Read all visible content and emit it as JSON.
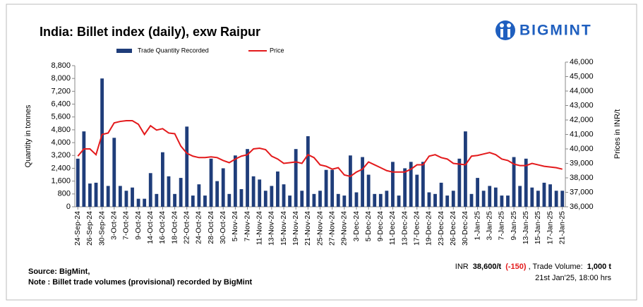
{
  "chart_data": {
    "type": "bar_line",
    "title": "India: Billet index (daily), exw Raipur",
    "brand": "BIGMINT",
    "y_label": "Quantity in tonnes",
    "y2_label": "Prices in INR/t",
    "categories": [
      "24-Sep-24",
      null,
      "26-Sep-24",
      null,
      "30-Sep-24",
      null,
      "3-Oct-24",
      null,
      "7-Oct-24",
      null,
      "9-Oct-24",
      null,
      "14-Oct-24",
      null,
      "16-Oct-24",
      null,
      "18-Oct-24",
      null,
      "22-Oct-24",
      null,
      "24-Oct-24",
      null,
      "28-Oct-24",
      null,
      "30-Oct-24",
      null,
      "5-Nov-24",
      null,
      "7-Nov-24",
      null,
      "11-Nov-24",
      null,
      "13-Nov-24",
      null,
      "15-Nov-24",
      null,
      "19-Nov-24",
      null,
      "21-Nov-24",
      null,
      "25-Nov-24",
      null,
      "27-Nov-24",
      null,
      "29-Nov-24",
      null,
      "3-Dec-24",
      null,
      "5-Dec-24",
      null,
      "9-Dec-24",
      null,
      "11-Dec-24",
      null,
      "13-Dec-24",
      null,
      "17-Dec-24",
      null,
      "19-Dec-24",
      null,
      "23-Dec-24",
      null,
      "26-Dec-24",
      null,
      "30-Dec-24",
      null,
      "1-Jan-25",
      null,
      "3-Jan-25",
      null,
      "7-Jan-25",
      null,
      "9-Jan-25",
      null,
      "13-Jan-25",
      null,
      "15-Jan-25",
      null,
      "17-Jan-25",
      null,
      "21-Jan-25"
    ],
    "series": [
      {
        "name": "Trade Quantity Recorded",
        "color": "#1f3d7a",
        "kind": "bar",
        "values": [
          3000,
          4700,
          1450,
          1500,
          8000,
          1300,
          4300,
          1300,
          1000,
          1200,
          500,
          500,
          2100,
          800,
          3400,
          1900,
          800,
          1800,
          5000,
          700,
          1400,
          700,
          3000,
          1600,
          2400,
          800,
          3200,
          1100,
          3600,
          1900,
          1700,
          1000,
          1300,
          2200,
          1400,
          700,
          3600,
          1000,
          4400,
          800,
          1000,
          2300,
          2300,
          800,
          700,
          3200,
          900,
          3100,
          2000,
          800,
          800,
          1000,
          2800,
          700,
          2400,
          2800,
          2000,
          2800,
          900,
          800,
          1500,
          700,
          1000,
          3000,
          4700,
          800,
          1800,
          1000,
          1300,
          1200,
          700,
          700,
          3100,
          1300,
          3000,
          1200,
          1000,
          1500,
          1400,
          1000,
          1000
        ]
      },
      {
        "name": "Price",
        "color": "#e31a1c",
        "kind": "line",
        "axis": "y2",
        "values": [
          39500,
          40000,
          40000,
          39600,
          41000,
          41100,
          41800,
          41900,
          41950,
          41950,
          41700,
          41000,
          41600,
          41300,
          41400,
          41100,
          41050,
          40200,
          39700,
          39500,
          39400,
          39400,
          39450,
          39400,
          39200,
          39050,
          39300,
          39500,
          39600,
          40000,
          40050,
          39950,
          39500,
          39300,
          39000,
          39050,
          39100,
          39000,
          39600,
          39400,
          38900,
          38800,
          38600,
          38700,
          38200,
          38100,
          38400,
          38600,
          39100,
          38900,
          38700,
          38500,
          38400,
          38400,
          38400,
          38600,
          38900,
          38900,
          39500,
          39600,
          39400,
          39300,
          39000,
          38950,
          38900,
          39500,
          39550,
          39650,
          39750,
          39600,
          39300,
          39200,
          38950,
          38850,
          38850,
          39000,
          38900,
          38800,
          38750,
          38700,
          38600
        ]
      }
    ],
    "ylim": [
      0,
      8800
    ],
    "yticks": [
      0,
      800,
      {
        "value": 1600,
        "label": "1,600"
      },
      {
        "value": 2400,
        "label": "2,400"
      },
      {
        "value": 3200,
        "label": "3,200"
      },
      {
        "value": 4000,
        "label": "4,000"
      },
      {
        "value": 4800,
        "label": "4,800"
      },
      {
        "value": 5600,
        "label": "5,600"
      },
      {
        "value": 6400,
        "label": "6,400"
      },
      {
        "value": 7200,
        "label": "7,200"
      },
      {
        "value": 8000,
        "label": "8,000"
      },
      {
        "value": 8800,
        "label": "8,800"
      }
    ],
    "y2lim": [
      36000,
      46000
    ],
    "y2ticks": [
      {
        "value": 36000,
        "label": "36,000"
      },
      {
        "value": 37000,
        "label": "37,000"
      },
      {
        "value": 38000,
        "label": "38,000"
      },
      {
        "value": 39000,
        "label": "39,000"
      },
      {
        "value": 40000,
        "label": "40,000"
      },
      {
        "value": 41000,
        "label": "41,000"
      },
      {
        "value": 42000,
        "label": "42,000"
      },
      {
        "value": 43000,
        "label": "43,000"
      },
      {
        "value": 44000,
        "label": "44,000"
      },
      {
        "value": 45000,
        "label": "45,000"
      },
      {
        "value": 46000,
        "label": "46,000"
      }
    ],
    "source": "Source: BigMint,",
    "note": "Note : Billet trade volumes (provisional) recorded by BigMint",
    "summary": [
      "INR",
      "38,600/t",
      "(-150)",
      ", Trade Volume:",
      "1,000 t"
    ],
    "timestamp": "21st Jan'25, 18:00 hrs"
  }
}
